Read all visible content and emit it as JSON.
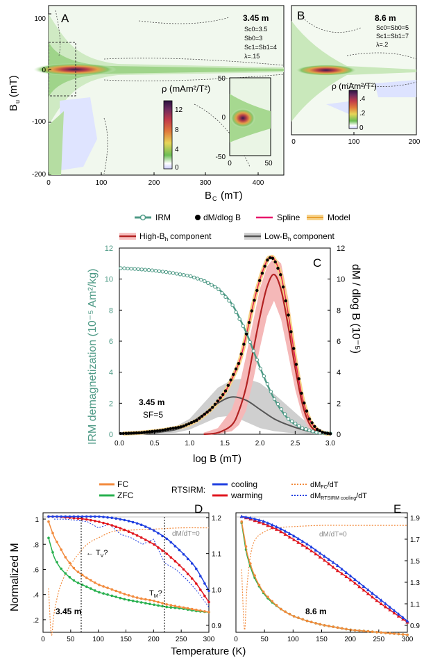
{
  "chart_data": [
    {
      "panel": "A",
      "type": "heatmap",
      "xlabel_main": "B",
      "xlabel_sub": "C",
      "xlabel_unit": "(mT)",
      "ylabel_main": "B",
      "ylabel_sub": "u",
      "ylabel_unit": "(mT)",
      "xlim": [
        0,
        450
      ],
      "ylim": [
        -200,
        125
      ],
      "xticks": [
        "0",
        "100",
        "200",
        "300",
        "400"
      ],
      "yticks": [
        "100",
        "0",
        "-100",
        "-200"
      ],
      "annotation_title": "3.45 m",
      "annotation_lines": [
        "Sc0=3.5",
        "Sb0=3",
        "Sc1=Sb1=4",
        "λ=.15"
      ],
      "colorbar_title": "ρ (mAm²/T²)",
      "colorbar_ticks": [
        "12",
        "8",
        "4",
        "0"
      ],
      "colorbar_range": [
        0,
        13
      ],
      "inset": {
        "xlim": [
          0,
          50
        ],
        "ylim": [
          -50,
          50
        ],
        "xticks": [
          "0",
          "50"
        ],
        "yticks": [
          "50",
          "0",
          "-50"
        ]
      }
    },
    {
      "panel": "B",
      "type": "heatmap",
      "xlim": [
        0,
        200
      ],
      "ylim": [
        -200,
        125
      ],
      "xticks": [
        "0",
        "100",
        "200"
      ],
      "annotation_title": "8.6 m",
      "annotation_lines": [
        "Sc0=Sb0=5",
        "Sc1=Sb1=7",
        "λ=.2"
      ],
      "colorbar_title": "ρ (mAm²/T²)",
      "colorbar_ticks": [
        ".4",
        ".2",
        "0"
      ],
      "colorbar_range": [
        0,
        0.45
      ]
    },
    {
      "panel": "C",
      "type": "line",
      "xlabel": "log B (mT)",
      "ylabel_left": "IRM demagnetization (10⁻⁵ Am²/kg)",
      "ylabel_right": "dM / dlog B (10⁻⁵)",
      "xlim": [
        0,
        3
      ],
      "ylim": [
        0,
        12
      ],
      "xticks": [
        "0.0",
        "0.5",
        "1.0",
        "1.5",
        "2.0",
        "2.5",
        "3.0"
      ],
      "yticks": [
        "0",
        "2",
        "4",
        "6",
        "8",
        "10",
        "12"
      ],
      "annotation_title": "3.45 m",
      "annotation_sub": "SF=5",
      "legend": [
        "IRM",
        "dM/dlog B",
        "Spline",
        "Model",
        "High-B",
        "h",
        "component",
        "Low-B",
        "h",
        "component"
      ],
      "irm": {
        "x": [
          0.05,
          0.25,
          0.5,
          0.75,
          1.0,
          1.2,
          1.4,
          1.6,
          1.8,
          2.0,
          2.2,
          2.4,
          2.6,
          2.8,
          3.0
        ],
        "y": [
          10.7,
          10.65,
          10.55,
          10.4,
          10.2,
          9.9,
          9.4,
          8.4,
          6.6,
          4.3,
          2.3,
          1.0,
          0.4,
          0.12,
          0.05
        ]
      },
      "dm": {
        "x": [
          0.05,
          0.3,
          0.6,
          0.9,
          1.1,
          1.3,
          1.5,
          1.7,
          1.8,
          1.9,
          2.0,
          2.1,
          2.15,
          2.2,
          2.3,
          2.4,
          2.5,
          2.6,
          2.7,
          2.8,
          2.9,
          3.0
        ],
        "y": [
          0.05,
          0.1,
          0.25,
          0.5,
          0.9,
          1.6,
          2.7,
          4.6,
          6.3,
          8.3,
          10.0,
          11.2,
          11.4,
          11.3,
          10.2,
          7.8,
          4.9,
          2.4,
          1.0,
          0.35,
          0.1,
          0.03
        ]
      },
      "high": {
        "x": [
          1.2,
          1.4,
          1.6,
          1.7,
          1.8,
          1.9,
          2.0,
          2.1,
          2.2,
          2.3,
          2.4,
          2.5,
          2.6,
          2.7,
          2.8,
          2.9,
          3.0
        ],
        "y": [
          0.0,
          0.1,
          0.6,
          1.5,
          3.0,
          5.3,
          7.6,
          9.5,
          10.3,
          9.3,
          7.0,
          4.3,
          2.0,
          0.7,
          0.2,
          0.05,
          0.0
        ],
        "upper": [
          0.1,
          0.4,
          1.6,
          3.0,
          5.0,
          7.2,
          9.4,
          10.8,
          11.4,
          11.0,
          8.8,
          5.6,
          2.8,
          1.1,
          0.35,
          0.1,
          0.0
        ],
        "lower": [
          0.0,
          0.0,
          0.2,
          0.6,
          1.5,
          3.4,
          5.6,
          7.6,
          8.6,
          7.4,
          5.2,
          2.9,
          1.2,
          0.35,
          0.1,
          0.0,
          0.0
        ]
      },
      "low": {
        "x": [
          0.1,
          0.5,
          0.8,
          1.0,
          1.2,
          1.4,
          1.6,
          1.8,
          2.0,
          2.2,
          2.4,
          2.6,
          2.8,
          3.0
        ],
        "y": [
          0.0,
          0.1,
          0.3,
          0.7,
          1.3,
          2.0,
          2.4,
          2.2,
          1.6,
          1.0,
          0.6,
          0.3,
          0.1,
          0.03
        ],
        "upper": [
          0.05,
          0.2,
          0.5,
          1.0,
          2.0,
          3.0,
          3.5,
          3.6,
          3.3,
          2.6,
          1.8,
          1.0,
          0.4,
          0.1
        ],
        "lower": [
          0.0,
          0.05,
          0.1,
          0.3,
          0.7,
          1.1,
          1.2,
          0.8,
          0.4,
          0.2,
          0.1,
          0.05,
          0.0,
          0.0
        ]
      }
    },
    {
      "panel": "D",
      "type": "line",
      "xlabel": "Temperature (K)",
      "ylabel": "Normalized M",
      "xlim": [
        0,
        300
      ],
      "ylim": [
        0.1,
        1.05
      ],
      "xticks": [
        "0",
        "50",
        "100",
        "150",
        "200",
        "250",
        "300"
      ],
      "yticks": [
        "1",
        ".8",
        ".6",
        ".4",
        ".2"
      ],
      "yticks_right": [
        "1.2",
        "1.1",
        "1.0",
        "0.9"
      ],
      "annotation_title": "3.45 m",
      "ann_tv": "← T",
      "ann_tv_sub": "V",
      "ann_tv_q": "?",
      "ann_tm": "T",
      "ann_tm_sub": "M",
      "ann_tm_q": "?",
      "ann_dmdt": "dM/dT=0",
      "fc": {
        "x": [
          10,
          20,
          30,
          40,
          50,
          60,
          80,
          100,
          125,
          150,
          175,
          200,
          225,
          250,
          275,
          300
        ],
        "y": [
          0.98,
          0.86,
          0.78,
          0.7,
          0.64,
          0.59,
          0.53,
          0.48,
          0.44,
          0.4,
          0.37,
          0.35,
          0.32,
          0.3,
          0.28,
          0.26
        ]
      },
      "zfc": {
        "x": [
          10,
          20,
          30,
          40,
          50,
          60,
          80,
          100,
          125,
          150,
          175,
          200,
          225,
          250,
          275,
          300
        ],
        "y": [
          0.85,
          0.7,
          0.62,
          0.57,
          0.53,
          0.5,
          0.46,
          0.42,
          0.39,
          0.36,
          0.34,
          0.32,
          0.3,
          0.29,
          0.27,
          0.26
        ]
      },
      "cool": {
        "x": [
          10,
          25,
          50,
          75,
          100,
          125,
          150,
          175,
          200,
          225,
          250,
          275,
          300
        ],
        "y": [
          1.02,
          1.02,
          1.02,
          1.02,
          1.02,
          1.01,
          0.99,
          0.96,
          0.91,
          0.84,
          0.74,
          0.62,
          0.43
        ]
      },
      "warm": {
        "x": [
          10,
          25,
          50,
          75,
          100,
          125,
          150,
          175,
          200,
          225,
          250,
          275,
          300
        ],
        "y": [
          1.02,
          1.02,
          1.01,
          1.0,
          0.98,
          0.95,
          0.91,
          0.86,
          0.8,
          0.72,
          0.62,
          0.5,
          0.34
        ]
      },
      "dmfc_dt": {
        "x": [
          10,
          15,
          20,
          30,
          45,
          60,
          80,
          100,
          125,
          150,
          200,
          250,
          300
        ],
        "y": [
          0.45,
          0.08,
          0.25,
          0.45,
          0.6,
          0.7,
          0.8,
          0.85,
          0.9,
          0.91,
          0.92,
          0.93,
          0.93
        ]
      },
      "dmrts_dt": {
        "x": [
          20,
          40,
          60,
          80,
          100,
          120,
          140,
          160,
          180,
          200,
          220,
          240,
          260,
          280,
          300
        ],
        "y": [
          1.0,
          1.0,
          0.99,
          0.98,
          0.93,
          0.96,
          0.88,
          0.85,
          0.8,
          0.84,
          0.65,
          0.6,
          0.52,
          0.42,
          0.3
        ]
      },
      "legend": [
        "FC",
        "ZFC",
        "RTSIRM:",
        "cooling",
        "warming",
        "dM",
        "FC",
        "/dT",
        "dM",
        "RTSIRM cooling",
        "/dT"
      ]
    },
    {
      "panel": "E",
      "type": "line",
      "xlim": [
        0,
        300
      ],
      "ylim": [
        0.1,
        1.05
      ],
      "xticks": [
        "0",
        "50",
        "100",
        "150",
        "200",
        "250",
        "300"
      ],
      "yticks_right": [
        "1.9",
        "1.7",
        "1.5",
        "1.3",
        "1.1",
        "0.9"
      ],
      "annotation_title": "8.6 m",
      "ann_dmdt": "dM/dT=0",
      "fc": {
        "x": [
          10,
          15,
          20,
          30,
          40,
          50,
          60,
          80,
          100,
          125,
          150,
          175,
          200,
          250,
          300
        ],
        "y": [
          0.98,
          0.85,
          0.72,
          0.58,
          0.48,
          0.41,
          0.36,
          0.28,
          0.23,
          0.19,
          0.16,
          0.14,
          0.12,
          0.1,
          0.08
        ]
      },
      "zfc": {
        "x": [
          10,
          15,
          20,
          30,
          40,
          50,
          60,
          80,
          100,
          125,
          150,
          175,
          200,
          250,
          300
        ],
        "y": [
          0.97,
          0.82,
          0.7,
          0.56,
          0.47,
          0.4,
          0.35,
          0.28,
          0.23,
          0.19,
          0.16,
          0.14,
          0.12,
          0.1,
          0.08
        ]
      },
      "cool": {
        "x": [
          10,
          25,
          50,
          75,
          100,
          125,
          150,
          175,
          200,
          225,
          250,
          275,
          300
        ],
        "y": [
          1.02,
          1.01,
          0.98,
          0.93,
          0.87,
          0.8,
          0.72,
          0.64,
          0.55,
          0.46,
          0.37,
          0.28,
          0.19
        ]
      },
      "warm": {
        "x": [
          10,
          25,
          50,
          75,
          100,
          125,
          150,
          175,
          200,
          225,
          250,
          275,
          300
        ],
        "y": [
          1.02,
          1.0,
          0.96,
          0.91,
          0.84,
          0.77,
          0.69,
          0.6,
          0.52,
          0.43,
          0.34,
          0.26,
          0.18
        ]
      },
      "dmfc_dt": {
        "x": [
          10,
          15,
          20,
          30,
          50,
          75,
          100,
          150,
          200,
          250,
          300
        ],
        "y": [
          0.6,
          0.12,
          0.5,
          0.8,
          0.9,
          0.93,
          0.94,
          0.95,
          0.95,
          0.95,
          0.95
        ]
      }
    }
  ]
}
